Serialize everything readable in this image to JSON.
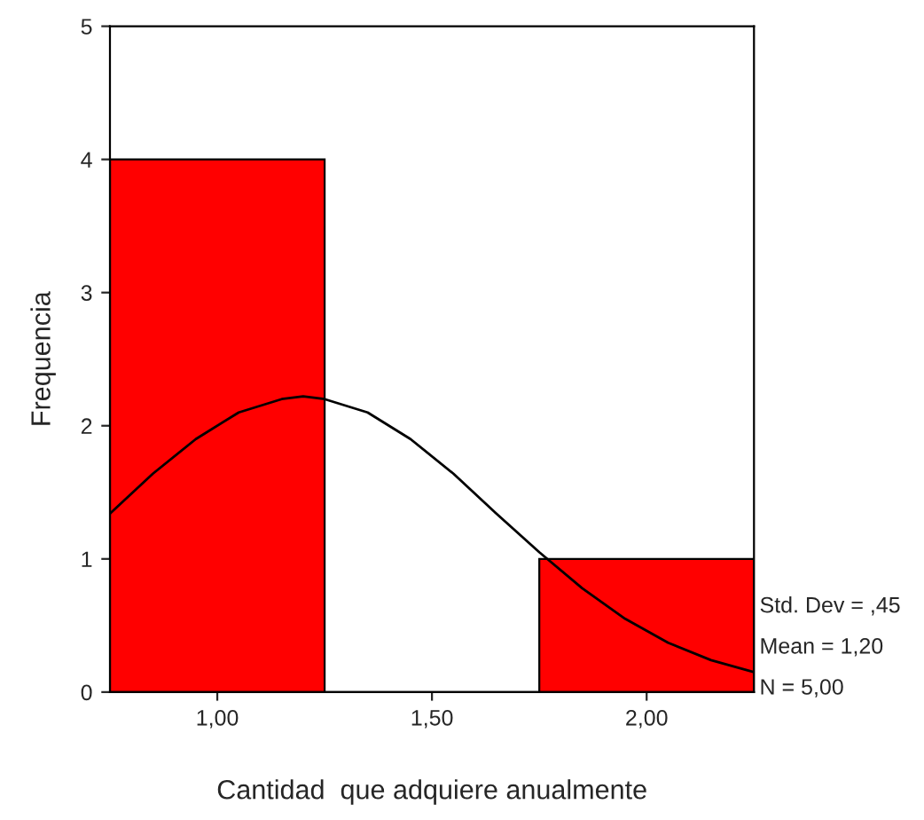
{
  "chart_data": {
    "type": "histogram",
    "xlabel": "Cantidad  que adquiere anualmente",
    "ylabel": "Frequencia",
    "bins": [
      0.75,
      1.25,
      1.75,
      2.25
    ],
    "series": [
      {
        "color": "#ff0000",
        "values": [
          4,
          0,
          1
        ]
      },
      {
        "type": "line",
        "color": "#000000",
        "x": [
          0.75,
          0.85,
          0.95,
          1.05,
          1.15,
          1.2,
          1.25,
          1.35,
          1.45,
          1.55,
          1.65,
          1.75,
          1.85,
          1.95,
          2.05,
          2.15,
          2.25
        ],
        "values": [
          1.34,
          1.64,
          1.9,
          2.1,
          2.2,
          2.22,
          2.2,
          2.1,
          1.9,
          1.64,
          1.34,
          1.05,
          0.78,
          0.55,
          0.37,
          0.24,
          0.15
        ]
      }
    ],
    "xlim": [
      0.75,
      2.25
    ],
    "xticks": [
      {
        "value": 1,
        "label": "1,00"
      },
      {
        "value": 1.5,
        "label": "1,50"
      },
      {
        "value": 2,
        "label": "2,00"
      }
    ],
    "ylim": [
      0,
      5
    ],
    "yticks": [
      0,
      1,
      2,
      3,
      4,
      5
    ],
    "grid": false,
    "legend": false,
    "marker": "none",
    "line_style": "solid",
    "annotations": [
      "Std. Dev = ,45",
      "Mean = 1,20",
      "N = 5,00"
    ]
  }
}
